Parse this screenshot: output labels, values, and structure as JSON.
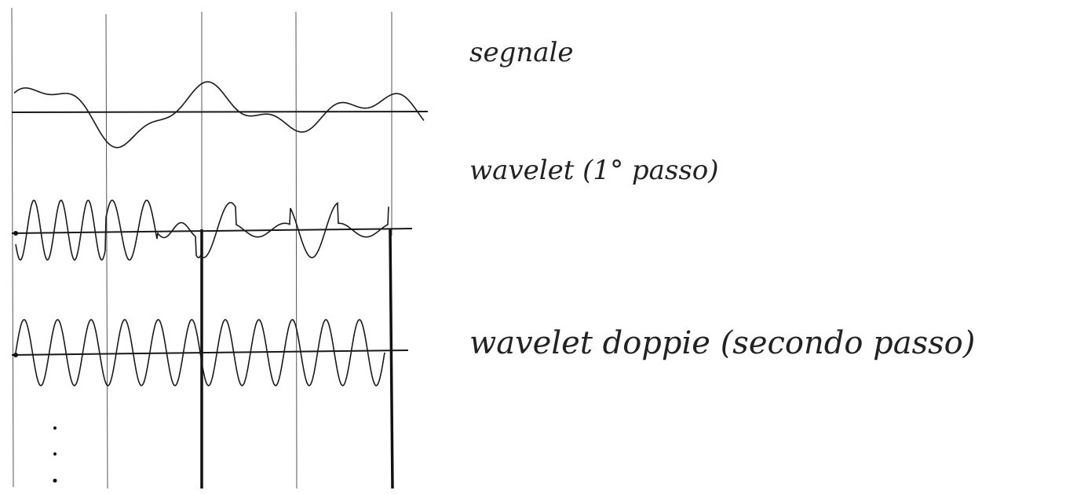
{
  "labels": [
    "segnale",
    "wavelet (1° passo)",
    "wavelet doppie (secondo passo)"
  ]
}
